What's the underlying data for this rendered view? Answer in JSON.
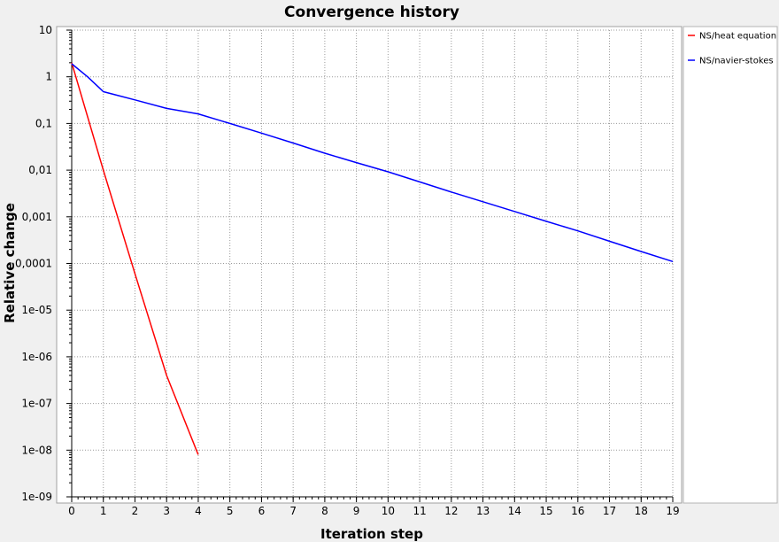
{
  "chart_data": {
    "type": "line",
    "title": "Convergence history",
    "xlabel": "Iteration step",
    "ylabel": "Relative change",
    "xlim": [
      0,
      19
    ],
    "ylim": [
      1e-09,
      10
    ],
    "y_scale": "log",
    "grid": true,
    "legend_position": "right",
    "x_ticks": [
      "0",
      "1",
      "2",
      "3",
      "4",
      "5",
      "6",
      "7",
      "8",
      "9",
      "10",
      "11",
      "12",
      "13",
      "14",
      "15",
      "16",
      "17",
      "18",
      "19"
    ],
    "y_ticks": [
      "10",
      "1",
      "0,1",
      "0,01",
      "0,001",
      "0,0001",
      "1e-05",
      "1e-06",
      "1e-07",
      "1e-08",
      "1e-09"
    ],
    "series": [
      {
        "name": "NS/heat equation",
        "color": "#ff0000",
        "x": [
          0,
          1,
          2,
          3,
          4
        ],
        "y": [
          2.0,
          0.01,
          6e-05,
          4e-07,
          8e-09
        ]
      },
      {
        "name": "NS/navier-stokes",
        "color": "#0000ff",
        "x": [
          0,
          0.5,
          0.85,
          1,
          2,
          3,
          4,
          5,
          6,
          7,
          8,
          9,
          10,
          11,
          12,
          13,
          14,
          15,
          16,
          17,
          18,
          19
        ],
        "y": [
          1.9,
          1.0,
          0.6,
          0.48,
          0.32,
          0.21,
          0.16,
          0.1,
          0.062,
          0.038,
          0.023,
          0.0145,
          0.0092,
          0.0056,
          0.0034,
          0.0021,
          0.0013,
          0.0008,
          0.0005,
          0.0003,
          0.00018,
          0.00011
        ]
      }
    ]
  }
}
